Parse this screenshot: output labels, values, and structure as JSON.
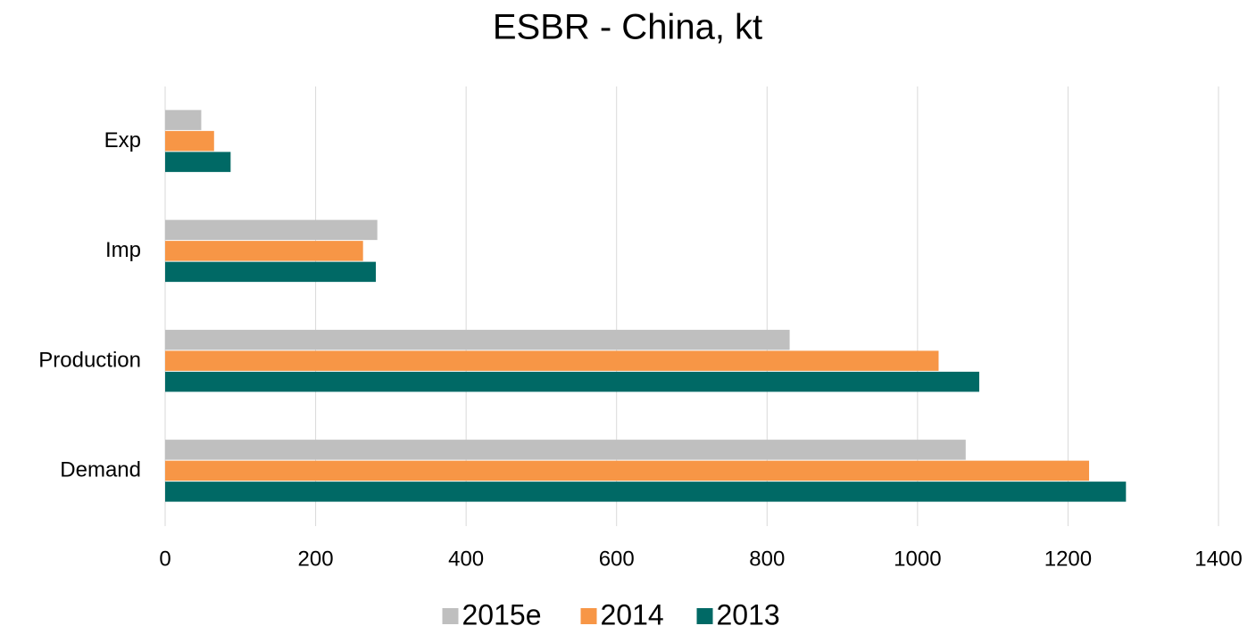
{
  "chart_data": {
    "type": "hbar",
    "title": "ESBR - China, kt",
    "categories": [
      "Exp",
      "Imp",
      "Production",
      "Demand"
    ],
    "series": [
      {
        "name": "2015e",
        "color": "#bfbfbf",
        "values": [
          48,
          282,
          830,
          1064
        ]
      },
      {
        "name": "2014",
        "color": "#f79646",
        "values": [
          65,
          263,
          1028,
          1228
        ]
      },
      {
        "name": "2013",
        "color": "#006965",
        "values": [
          87,
          280,
          1082,
          1277
        ]
      }
    ],
    "xlim": [
      0,
      1400
    ],
    "xticks": [
      0,
      200,
      400,
      600,
      800,
      1000,
      1200,
      1400
    ],
    "grid": true
  }
}
